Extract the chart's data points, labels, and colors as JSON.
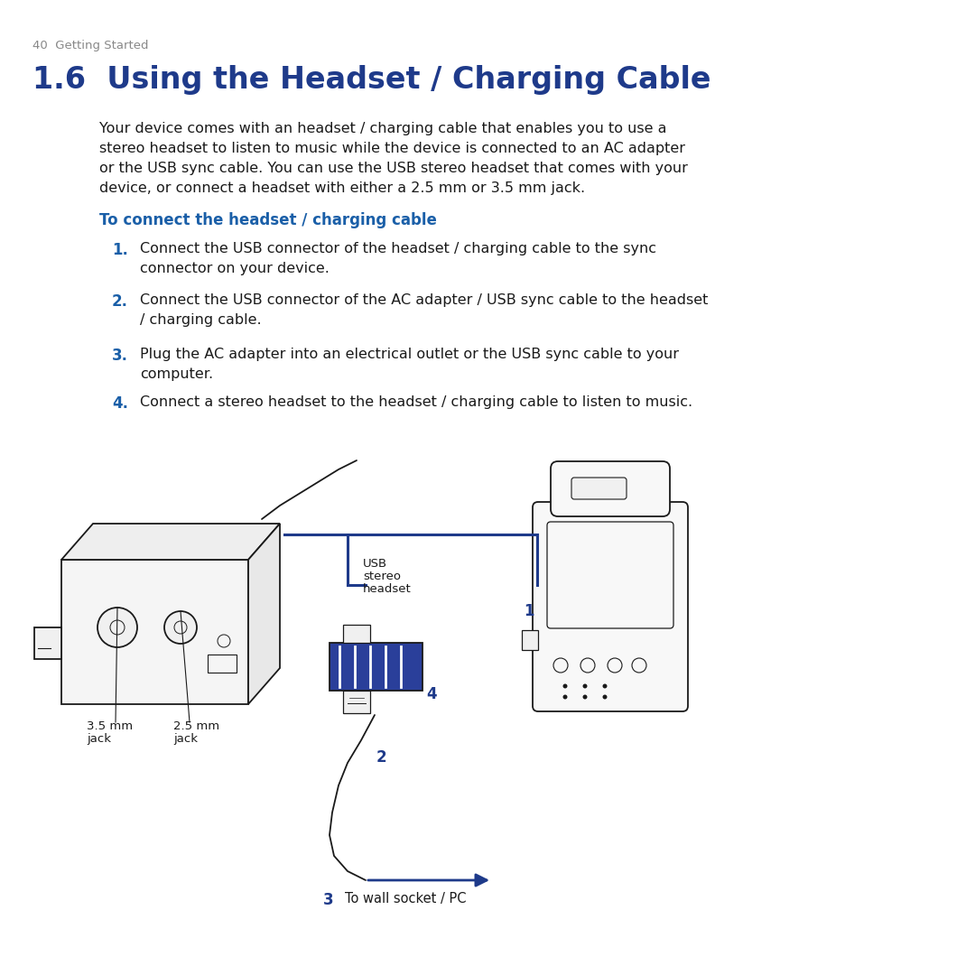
{
  "page_number": "40",
  "page_subtitle": "Getting Started",
  "title": "1.6  Using the Headset / Charging Cable",
  "body_line1": "Your device comes with an headset / charging cable that enables you to use a",
  "body_line2": "stereo headset to listen to music while the device is connected to an AC adapter",
  "body_line3": "or the USB sync cable. You can use the USB stereo headset that comes with your",
  "body_line4": "device, or connect a headset with either a 2.5 mm or 3.5 mm jack.",
  "subheading": "To connect the headset / charging cable",
  "step1_num": "1.",
  "step1_line1": "Connect the USB connector of the headset / charging cable to the sync",
  "step1_line2": "connector on your device.",
  "step2_num": "2.",
  "step2_line1": "Connect the USB connector of the AC adapter / USB sync cable to the headset",
  "step2_line2": "/ charging cable.",
  "step3_num": "3.",
  "step3_line1": "Plug the AC adapter into an electrical outlet or the USB sync cable to your",
  "step3_line2": "computer.",
  "step4_num": "4.",
  "step4_line1": "Connect a stereo headset to the headset / charging cable to listen to music.",
  "label_usb": "USB",
  "label_stereo": "stereo",
  "label_headset": "headset",
  "label_35mm_1": "3.5 mm",
  "label_35mm_2": "jack",
  "label_25mm_1": "2.5 mm",
  "label_25mm_2": "jack",
  "label_1": "1",
  "label_2": "2",
  "label_3": "3",
  "label_3_text": "To wall socket / PC",
  "label_4": "4",
  "colors": {
    "title": "#1e3a8a",
    "subheading": "#1a5fa8",
    "step_num": "#1a5fa8",
    "page_info": "#888888",
    "body": "#1a1a1a",
    "blue": "#1e3a8a",
    "black": "#1a1a1a",
    "white": "#ffffff",
    "bg": "#ffffff",
    "gray_light": "#dddddd"
  },
  "fs_page": 9.5,
  "fs_title": 24,
  "fs_body": 11.5,
  "fs_sub": 12,
  "fs_step_num": 12,
  "fs_step": 11.5,
  "fs_diag_lbl": 9.5,
  "fs_diag_num": 11
}
